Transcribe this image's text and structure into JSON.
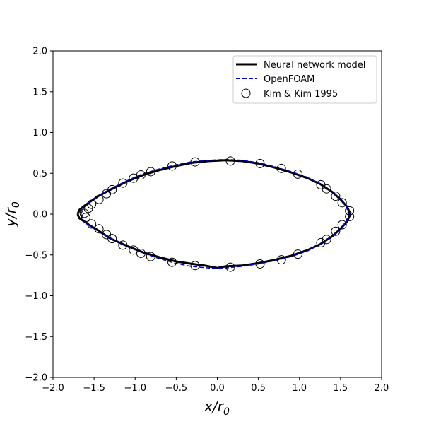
{
  "chart_data": {
    "type": "line",
    "title": "",
    "xlabel": {
      "var": "x",
      "sub": "0",
      "base": "/r"
    },
    "ylabel": {
      "var": "y",
      "sub": "0",
      "base": "/r"
    },
    "xlim": [
      -2.0,
      2.0
    ],
    "ylim": [
      -2.0,
      2.0
    ],
    "xticks": [
      -2.0,
      -1.5,
      -1.0,
      -0.5,
      0.0,
      0.5,
      1.0,
      1.5,
      2.0
    ],
    "yticks": [
      -2.0,
      -1.5,
      -1.0,
      -0.5,
      0.0,
      0.5,
      1.0,
      1.5,
      2.0
    ],
    "xtick_labels": [
      "−2.0",
      "−1.5",
      "−1.0",
      "−0.5",
      "0.0",
      "0.5",
      "1.0",
      "1.5",
      "2.0"
    ],
    "ytick_labels": [
      "−2.0",
      "−1.5",
      "−1.0",
      "−0.5",
      "0.0",
      "0.5",
      "1.0",
      "1.5",
      "2.0"
    ],
    "grid": false,
    "legend_position": "top-right",
    "series": [
      {
        "name": "Neural network model",
        "style": "solid",
        "color": "#000000",
        "points": [
          [
            -1.7,
            0.0
          ],
          [
            -1.68,
            0.05
          ],
          [
            -1.62,
            0.1
          ],
          [
            -1.55,
            0.15
          ],
          [
            -1.45,
            0.22
          ],
          [
            -1.3,
            0.3
          ],
          [
            -1.1,
            0.4
          ],
          [
            -0.9,
            0.48
          ],
          [
            -0.7,
            0.54
          ],
          [
            -0.5,
            0.59
          ],
          [
            -0.3,
            0.63
          ],
          [
            -0.1,
            0.65
          ],
          [
            0.1,
            0.66
          ],
          [
            0.3,
            0.65
          ],
          [
            0.5,
            0.62
          ],
          [
            0.7,
            0.57
          ],
          [
            0.9,
            0.51
          ],
          [
            1.1,
            0.44
          ],
          [
            1.25,
            0.37
          ],
          [
            1.4,
            0.27
          ],
          [
            1.5,
            0.18
          ],
          [
            1.58,
            0.09
          ],
          [
            1.62,
            0.0
          ],
          [
            1.58,
            -0.09
          ],
          [
            1.5,
            -0.18
          ],
          [
            1.4,
            -0.27
          ],
          [
            1.25,
            -0.37
          ],
          [
            1.1,
            -0.44
          ],
          [
            0.9,
            -0.51
          ],
          [
            0.7,
            -0.56
          ],
          [
            0.5,
            -0.6
          ],
          [
            0.3,
            -0.63
          ],
          [
            0.1,
            -0.64
          ],
          [
            0.0,
            -0.66
          ],
          [
            -0.15,
            -0.63
          ],
          [
            -0.3,
            -0.61
          ],
          [
            -0.5,
            -0.58
          ],
          [
            -0.7,
            -0.53
          ],
          [
            -0.9,
            -0.47
          ],
          [
            -1.1,
            -0.39
          ],
          [
            -1.3,
            -0.3
          ],
          [
            -1.45,
            -0.2
          ],
          [
            -1.55,
            -0.14
          ],
          [
            -1.62,
            -0.09
          ],
          [
            -1.68,
            -0.05
          ],
          [
            -1.7,
            0.0
          ]
        ]
      },
      {
        "name": "OpenFOAM",
        "style": "dashed",
        "color": "#0000cc",
        "points": [
          [
            -1.66,
            0.0
          ],
          [
            -1.63,
            0.07
          ],
          [
            -1.57,
            0.14
          ],
          [
            -1.47,
            0.21
          ],
          [
            -1.32,
            0.3
          ],
          [
            -1.12,
            0.4
          ],
          [
            -0.92,
            0.49
          ],
          [
            -0.72,
            0.55
          ],
          [
            -0.52,
            0.6
          ],
          [
            -0.32,
            0.64
          ],
          [
            -0.1,
            0.66
          ],
          [
            0.1,
            0.67
          ],
          [
            0.3,
            0.66
          ],
          [
            0.5,
            0.63
          ],
          [
            0.7,
            0.58
          ],
          [
            0.9,
            0.52
          ],
          [
            1.1,
            0.45
          ],
          [
            1.25,
            0.37
          ],
          [
            1.4,
            0.27
          ],
          [
            1.5,
            0.18
          ],
          [
            1.57,
            0.09
          ],
          [
            1.6,
            0.0
          ],
          [
            1.57,
            -0.09
          ],
          [
            1.5,
            -0.18
          ],
          [
            1.4,
            -0.27
          ],
          [
            1.25,
            -0.37
          ],
          [
            1.1,
            -0.45
          ],
          [
            0.9,
            -0.52
          ],
          [
            0.7,
            -0.57
          ],
          [
            0.5,
            -0.61
          ],
          [
            0.3,
            -0.64
          ],
          [
            0.1,
            -0.66
          ],
          [
            -0.1,
            -0.66
          ],
          [
            -0.32,
            -0.64
          ],
          [
            -0.52,
            -0.6
          ],
          [
            -0.72,
            -0.54
          ],
          [
            -0.92,
            -0.47
          ],
          [
            -1.12,
            -0.39
          ],
          [
            -1.32,
            -0.29
          ],
          [
            -1.47,
            -0.2
          ],
          [
            -1.57,
            -0.13
          ],
          [
            -1.63,
            -0.07
          ],
          [
            -1.66,
            0.0
          ]
        ]
      },
      {
        "name": "Kim & Kim 1995",
        "style": "markers",
        "marker": "open-circle",
        "color": "#000000",
        "points": [
          [
            -1.62,
            0.01
          ],
          [
            -1.6,
            -0.04
          ],
          [
            -1.57,
            0.07
          ],
          [
            -1.53,
            0.12
          ],
          [
            -1.53,
            -0.12
          ],
          [
            -1.44,
            0.18
          ],
          [
            -1.44,
            -0.18
          ],
          [
            -1.35,
            0.25
          ],
          [
            -1.35,
            -0.25
          ],
          [
            -1.28,
            0.3
          ],
          [
            -1.28,
            -0.3
          ],
          [
            -1.15,
            0.38
          ],
          [
            -1.15,
            -0.38
          ],
          [
            -1.02,
            0.44
          ],
          [
            -1.02,
            -0.44
          ],
          [
            -0.93,
            0.48
          ],
          [
            -0.93,
            -0.48
          ],
          [
            -0.81,
            0.52
          ],
          [
            -0.81,
            -0.52
          ],
          [
            -0.55,
            0.59
          ],
          [
            -0.55,
            -0.59
          ],
          [
            -0.27,
            0.64
          ],
          [
            -0.27,
            -0.63
          ],
          [
            0.16,
            0.65
          ],
          [
            0.16,
            -0.65
          ],
          [
            0.52,
            0.62
          ],
          [
            0.52,
            -0.61
          ],
          [
            0.78,
            0.56
          ],
          [
            0.78,
            -0.56
          ],
          [
            0.98,
            0.49
          ],
          [
            0.98,
            -0.49
          ],
          [
            1.26,
            0.36
          ],
          [
            1.26,
            -0.35
          ],
          [
            1.33,
            0.31
          ],
          [
            1.33,
            -0.31
          ],
          [
            1.44,
            0.22
          ],
          [
            1.44,
            -0.21
          ],
          [
            1.52,
            0.14
          ],
          [
            1.52,
            -0.13
          ],
          [
            1.61,
            0.04
          ],
          [
            1.61,
            -0.03
          ]
        ]
      }
    ]
  }
}
